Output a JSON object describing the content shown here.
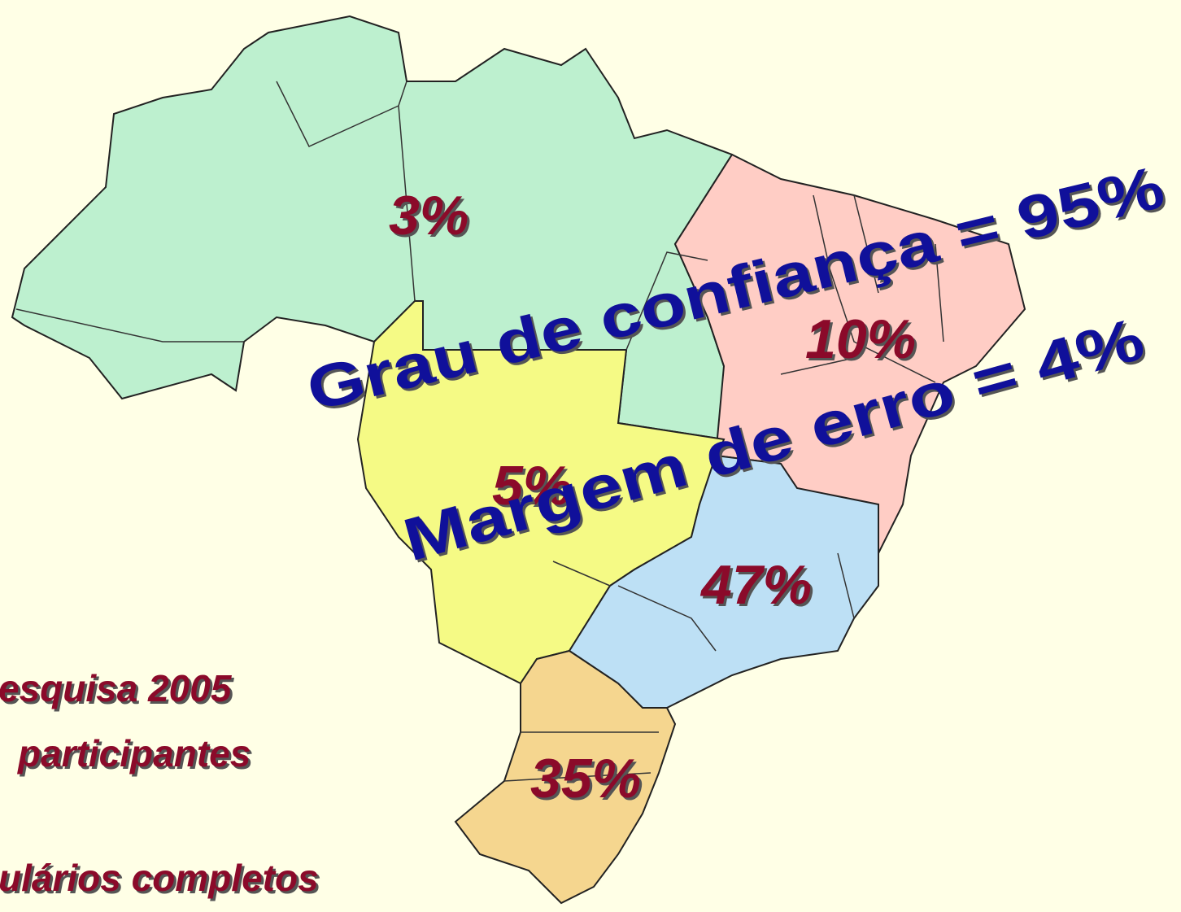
{
  "regions": [
    {
      "label": "3%"
    },
    {
      "label": "10%"
    },
    {
      "label": "5%"
    },
    {
      "label": "47%"
    },
    {
      "label": "35%"
    }
  ],
  "overlay": {
    "line1": "Grau  de  confiança  =  95%",
    "line2": "Margem  de  erro  =  4%"
  },
  "notes": [
    "esquisa 2005",
    "participantes",
    "ulários completos"
  ]
}
